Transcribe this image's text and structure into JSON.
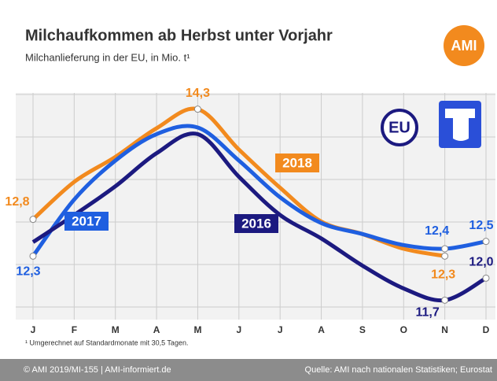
{
  "chart_data": {
    "type": "line",
    "title": "Milchaufkommen ab Herbst unter Vorjahr",
    "subtitle": "Milchanlieferung in der EU, in Mio. t¹",
    "categories": [
      "J",
      "F",
      "M",
      "A",
      "M",
      "J",
      "J",
      "A",
      "S",
      "O",
      "N",
      "D"
    ],
    "series": [
      {
        "name": "2018",
        "color": "#f28a1e",
        "values": [
          12.8,
          13.31,
          13.65,
          14.04,
          14.3,
          13.75,
          13.23,
          12.77,
          12.6,
          12.4,
          12.3,
          null
        ],
        "value_labels": [
          "12,8",
          null,
          null,
          null,
          "14,3",
          null,
          null,
          null,
          null,
          null,
          "12,3",
          null
        ]
      },
      {
        "name": "2017",
        "color": "#1f5fe0",
        "values": [
          12.3,
          13.07,
          13.6,
          13.96,
          14.05,
          13.6,
          13.1,
          12.75,
          12.6,
          12.45,
          12.4,
          12.5
        ],
        "value_labels": [
          "12,3",
          null,
          null,
          null,
          null,
          null,
          null,
          null,
          null,
          null,
          "12,4",
          "12,5"
        ]
      },
      {
        "name": "2016",
        "color": "#1c1a80",
        "values": [
          12.49,
          12.86,
          13.25,
          13.7,
          13.96,
          13.38,
          12.86,
          12.54,
          12.17,
          11.86,
          11.7,
          12.0
        ],
        "value_labels": [
          null,
          null,
          null,
          null,
          null,
          null,
          null,
          null,
          null,
          null,
          "11,7",
          "12,0"
        ]
      }
    ],
    "ylim": [
      11.5,
      14.5
    ],
    "grid": true,
    "footnote": "¹ Umgerechnet auf Standardmonate mit 30,5 Tagen.",
    "logo": "AMI",
    "badge": "EU",
    "footer_left": "© AMI 2019/MI-155 | AMI-informiert.de",
    "footer_right": "Quelle: AMI nach nationalen Statistiken; Eurostat"
  }
}
